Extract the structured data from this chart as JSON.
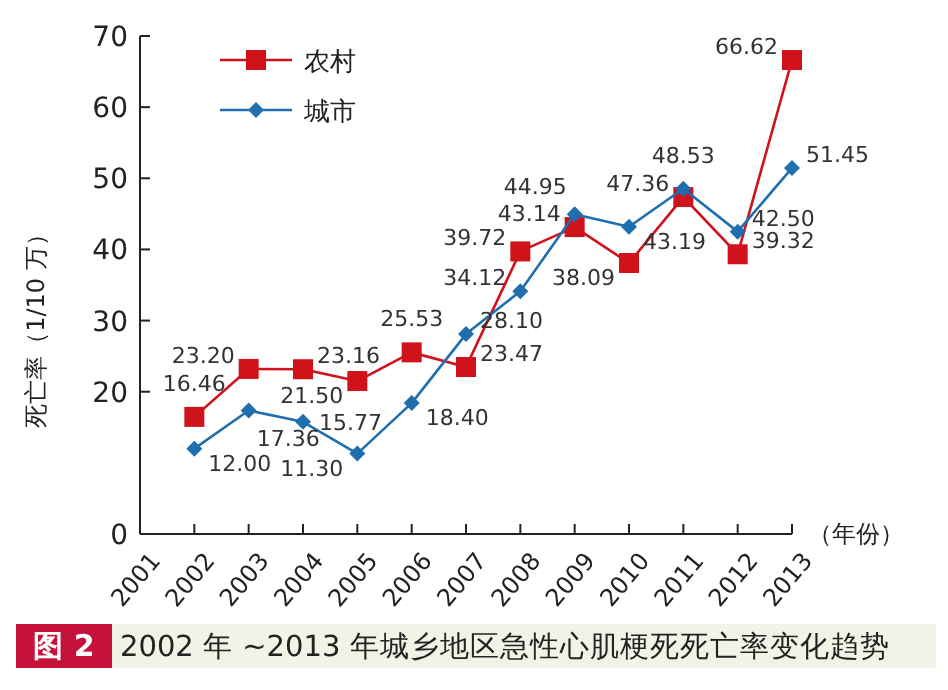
{
  "chart_data": {
    "type": "line",
    "title": "2002 年 ~2013 年城乡地区急性心肌梗死死亡率变化趋势",
    "annotations": [
      "图 2"
    ],
    "xlabel": "（年份）",
    "ylabel": "死亡率（1/10 万）",
    "x": [
      2002,
      2003,
      2004,
      2005,
      2006,
      2007,
      2008,
      2009,
      2010,
      2011,
      2012,
      2013
    ],
    "series": [
      {
        "name": "农村",
        "color": "#d0121b",
        "marker": "square",
        "values": [
          16.46,
          23.2,
          23.16,
          21.5,
          25.53,
          23.47,
          39.72,
          43.14,
          38.09,
          47.36,
          39.32,
          66.62
        ],
        "value_labels": [
          "16.46",
          "23.20",
          "23.16",
          "21.50",
          "25.53",
          "23.47",
          "39.72",
          "43.14",
          "38.09",
          "47.36",
          "39.32",
          "66.62"
        ]
      },
      {
        "name": "城市",
        "color": "#1f6fae",
        "marker": "diamond",
        "values": [
          12.0,
          17.36,
          15.77,
          11.3,
          18.4,
          28.1,
          34.12,
          44.95,
          43.19,
          48.53,
          42.5,
          51.45
        ],
        "value_labels": [
          "12.00",
          "17.36",
          "15.77",
          "11.30",
          "18.40",
          "28.10",
          "34.12",
          "44.95",
          "43.19",
          "48.53",
          "42.50",
          "51.45"
        ]
      }
    ],
    "xlim": [
      2001,
      2013
    ],
    "xticks": [
      2001,
      2002,
      2003,
      2004,
      2005,
      2006,
      2007,
      2008,
      2009,
      2010,
      2011,
      2012,
      2013
    ],
    "ylim": [
      0,
      70
    ],
    "yticks": [
      0,
      20,
      30,
      40,
      50,
      60,
      70
    ],
    "legend": "top left",
    "grid": false
  }
}
